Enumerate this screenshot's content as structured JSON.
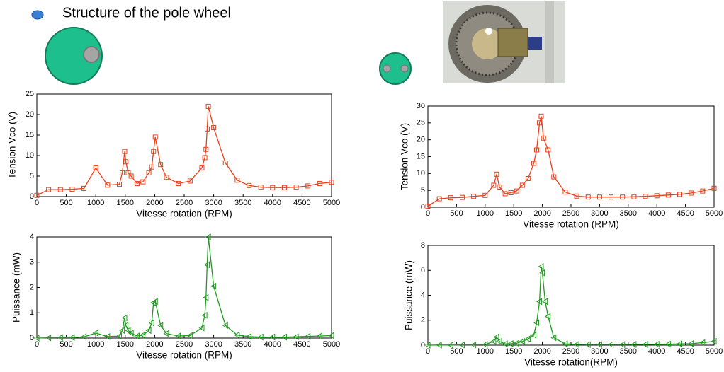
{
  "title": "Structure of the pole wheel",
  "chart_data": [
    {
      "type": "line",
      "ylabel": "Tension Vco (V)",
      "xlabel": "Vitesse rotation (RPM)",
      "marker": "square",
      "color": "#e8401c",
      "x": [
        0,
        200,
        400,
        600,
        800,
        1000,
        1200,
        1400,
        1450,
        1490,
        1510,
        1550,
        1600,
        1700,
        1800,
        1900,
        1950,
        1980,
        2010,
        2100,
        2200,
        2400,
        2600,
        2800,
        2850,
        2870,
        2890,
        2910,
        3000,
        3200,
        3400,
        3600,
        3800,
        4000,
        4200,
        4400,
        4600,
        4800,
        5000
      ],
      "values": [
        0.3,
        1.7,
        1.7,
        1.8,
        2,
        7,
        2.8,
        3,
        5.8,
        11,
        8.5,
        5.8,
        5,
        3.2,
        3.6,
        5.8,
        7.2,
        11,
        14.5,
        7.8,
        4.7,
        3.2,
        3.8,
        7,
        9.5,
        11.5,
        16.5,
        22,
        16.8,
        8.2,
        4,
        2.7,
        2.3,
        2.2,
        2.2,
        2.3,
        2.6,
        3.2,
        3.5
      ],
      "xlim": [
        0,
        5000
      ],
      "ylim": [
        0,
        25
      ],
      "xticks": [
        0,
        500,
        1000,
        1500,
        2000,
        2500,
        3000,
        3500,
        4000,
        4500,
        5000
      ],
      "yticks": [
        0,
        5,
        10,
        15,
        20,
        25
      ]
    },
    {
      "type": "line",
      "ylabel": "Puissance (mW)",
      "xlabel": "Vitesse rotation (RPM)",
      "marker": "triangle-left",
      "color": "#1f9a1f",
      "x": [
        0,
        200,
        400,
        600,
        800,
        1000,
        1200,
        1400,
        1450,
        1490,
        1510,
        1550,
        1600,
        1700,
        1800,
        1900,
        1950,
        1980,
        2010,
        2100,
        2200,
        2400,
        2600,
        2800,
        2850,
        2870,
        2890,
        2910,
        3000,
        3200,
        3400,
        3600,
        3800,
        4000,
        4200,
        4400,
        4600,
        4800,
        5000
      ],
      "values": [
        0,
        0.01,
        0.02,
        0.02,
        0.05,
        0.2,
        0.06,
        0.08,
        0.3,
        0.8,
        0.5,
        0.3,
        0.2,
        0.08,
        0.12,
        0.3,
        0.6,
        1.4,
        1.45,
        0.5,
        0.18,
        0.08,
        0.1,
        0.4,
        0.9,
        1.6,
        2.9,
        4,
        2.05,
        0.5,
        0.12,
        0.06,
        0.04,
        0.04,
        0.04,
        0.05,
        0.07,
        0.08,
        0.1
      ],
      "xlim": [
        0,
        5000
      ],
      "ylim": [
        0,
        4
      ],
      "xticks": [
        0,
        500,
        1000,
        1500,
        2000,
        2500,
        3000,
        3500,
        4000,
        4500,
        5000
      ],
      "yticks": [
        0,
        1,
        2,
        3,
        4
      ]
    },
    {
      "type": "line",
      "ylabel": "Tension Vco (V)",
      "xlabel": "Vitesse rotation (RPM)",
      "marker": "square",
      "color": "#e8401c",
      "x": [
        0,
        200,
        400,
        600,
        800,
        1000,
        1150,
        1200,
        1250,
        1350,
        1450,
        1550,
        1650,
        1750,
        1850,
        1900,
        1950,
        1980,
        2020,
        2100,
        2200,
        2400,
        2600,
        2800,
        3000,
        3200,
        3400,
        3600,
        3800,
        4000,
        4200,
        4400,
        4600,
        4800,
        5000
      ],
      "values": [
        0.3,
        2.5,
        2.8,
        2.9,
        3.2,
        3.5,
        6.5,
        9.8,
        6,
        4,
        4.3,
        4.8,
        6.5,
        8.5,
        13,
        17,
        25,
        27,
        20.5,
        17,
        9,
        4.5,
        3.3,
        3,
        3,
        3,
        3,
        3.1,
        3.2,
        3.4,
        3.6,
        3.8,
        4.2,
        4.8,
        5.6
      ],
      "xlim": [
        0,
        5000
      ],
      "ylim": [
        0,
        30
      ],
      "xticks": [
        0,
        500,
        1000,
        1500,
        2000,
        2500,
        3000,
        3500,
        4000,
        4500,
        5000
      ],
      "yticks": [
        0,
        5,
        10,
        15,
        20,
        25,
        30
      ]
    },
    {
      "type": "line",
      "ylabel": "Puissance (mW)",
      "xlabel": "Vitesse rotation(RPM)",
      "marker": "triangle-left",
      "color": "#1f9a1f",
      "x": [
        0,
        200,
        400,
        600,
        800,
        1000,
        1150,
        1200,
        1250,
        1350,
        1450,
        1550,
        1650,
        1750,
        1850,
        1900,
        1950,
        1980,
        2000,
        2050,
        2100,
        2200,
        2400,
        2600,
        2800,
        3000,
        3200,
        3400,
        3600,
        3800,
        4000,
        4200,
        4400,
        4600,
        4800,
        5000
      ],
      "values": [
        0,
        0.01,
        0.01,
        0.02,
        0.02,
        0.05,
        0.3,
        0.65,
        0.3,
        0.1,
        0.12,
        0.15,
        0.3,
        0.5,
        0.8,
        1.8,
        3.5,
        6.3,
        5.8,
        3.5,
        2.3,
        0.6,
        0.1,
        0.06,
        0.05,
        0.05,
        0.05,
        0.05,
        0.06,
        0.06,
        0.07,
        0.08,
        0.1,
        0.12,
        0.2,
        0.3
      ],
      "xlim": [
        0,
        5000
      ],
      "ylim": [
        0,
        8
      ],
      "xticks": [
        0,
        500,
        1000,
        1500,
        2000,
        2500,
        3000,
        3500,
        4000,
        4500,
        5000
      ],
      "yticks": [
        0,
        2,
        4,
        6,
        8
      ]
    }
  ]
}
